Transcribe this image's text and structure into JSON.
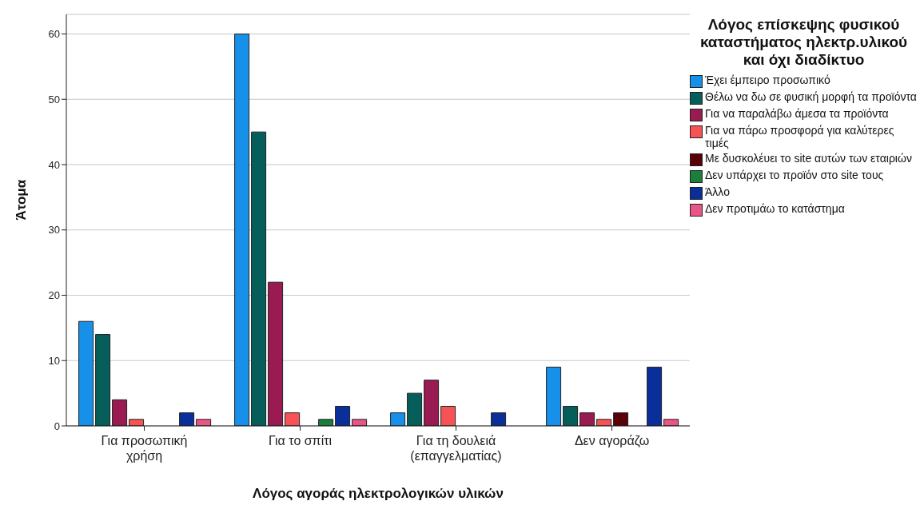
{
  "chart_data": {
    "type": "bar",
    "xlabel": "Λόγος αγοράς ηλεκτρολογικών υλικών",
    "ylabel": "Άτομα",
    "legend_title": "Λόγος επίσκεψης φυσικού καταστήματος ηλεκτρ.υλικού και όχι διαδίκτυο",
    "categories": [
      "Για προσωπική χρήση",
      "Για το σπίτι",
      "Για τη δουλειά (επαγγελματίας)",
      "Δεν αγοράζω"
    ],
    "series": [
      {
        "name": "Έχει έμπειρο προσωπικό",
        "color": "#1690e8",
        "values": [
          16,
          60,
          2,
          9
        ]
      },
      {
        "name": "Θέλω να δω σε φυσική μορφή τα προϊόντα",
        "color": "#055e5a",
        "values": [
          14,
          45,
          5,
          3
        ]
      },
      {
        "name": "Για να παραλάβω άμεσα τα προϊόντα",
        "color": "#9a1a52",
        "values": [
          4,
          22,
          7,
          2
        ]
      },
      {
        "name": "Για να πάρω προσφορά για καλύτερες τιμές",
        "color": "#f75356",
        "values": [
          1,
          2,
          3,
          1
        ]
      },
      {
        "name": "Με δυσκολέυει το site αυτών των εταιριών",
        "color": "#5a0008",
        "values": [
          null,
          null,
          null,
          2
        ]
      },
      {
        "name": "Δεν υπάρχει το προϊόν στο site τους",
        "color": "#1a7f3a",
        "values": [
          null,
          1,
          null,
          null
        ]
      },
      {
        "name": "Άλλο",
        "color": "#0a2f9a",
        "values": [
          2,
          3,
          2,
          9
        ]
      },
      {
        "name": "Δεν προτιμάω το κατάστημα",
        "color": "#ea5588",
        "values": [
          1,
          1,
          null,
          1
        ]
      }
    ],
    "ylim": [
      0,
      63
    ],
    "yticks": [
      0,
      10,
      20,
      30,
      40,
      50,
      60
    ],
    "grid": "y",
    "legend": "right"
  }
}
